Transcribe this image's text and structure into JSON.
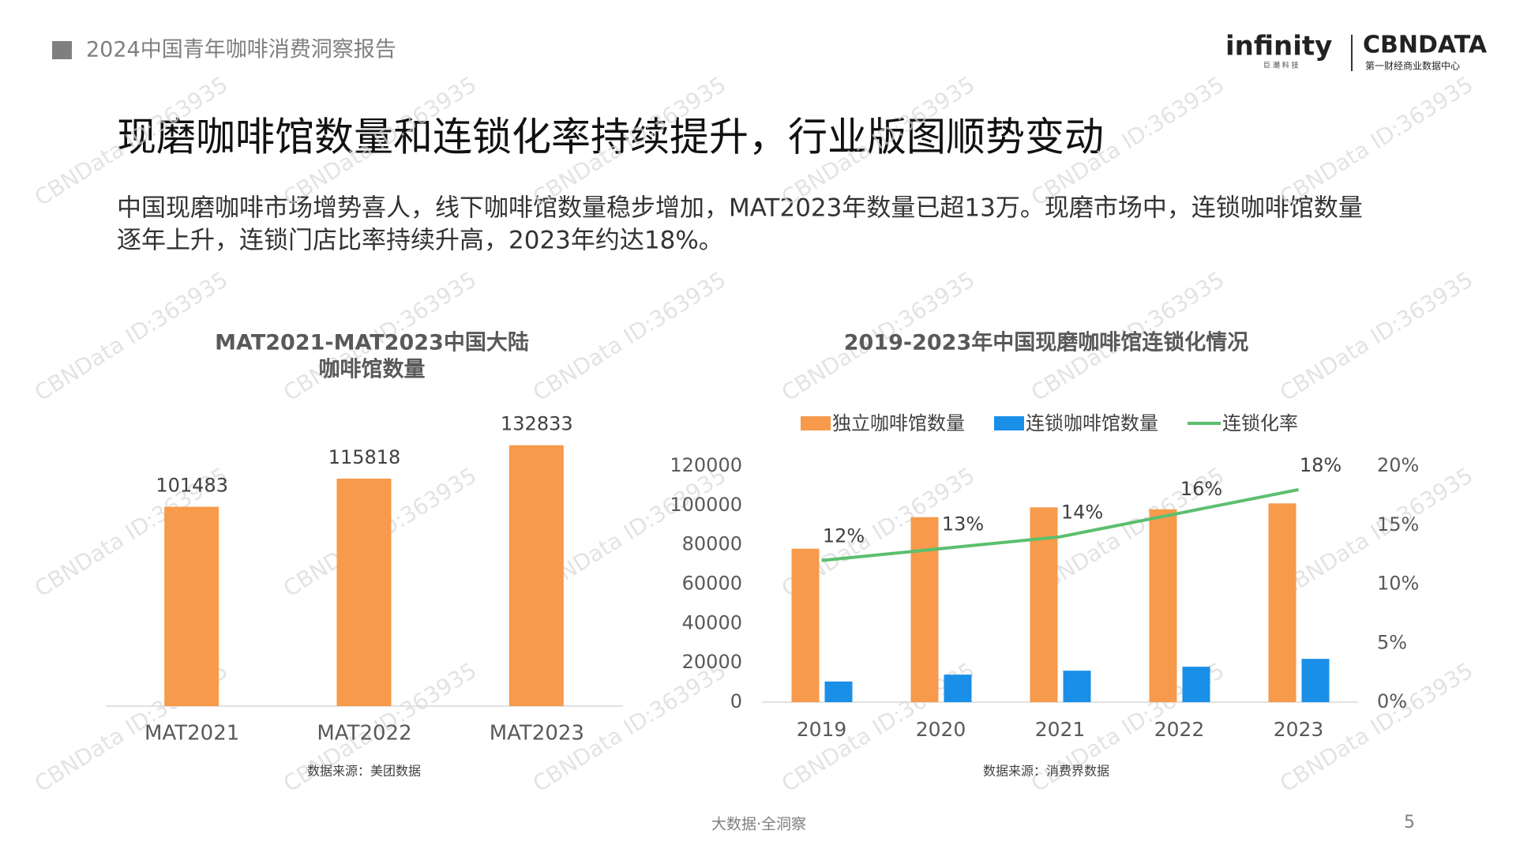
{
  "header": {
    "report_title": "2024中国青年咖啡消费洞察报告",
    "logo_left": "infinity",
    "logo_left_sub": "巨 潮 科 技",
    "logo_right": "CBNDATA",
    "logo_right_sub": "第一财经商业数据中心"
  },
  "title": "现磨咖啡馆数量和连锁化率持续提升，行业版图顺势变动",
  "description": [
    "中国现磨咖啡市场增势喜人，线下咖啡馆数量稳步增加，MAT2023年数量已超13万。现磨市场中，连锁咖啡馆数量",
    "逐年上升，连锁门店比率持续升高，2023年约达18%。"
  ],
  "watermark": "CBNData ID:363935",
  "footer": "大数据·全洞察",
  "page_number": "5",
  "chart_data": [
    {
      "type": "bar",
      "title": [
        "MAT2021-MAT2023中国大陆",
        "咖啡馆数量"
      ],
      "categories": [
        "MAT2021",
        "MAT2022",
        "MAT2023"
      ],
      "values": [
        101483,
        115818,
        132833
      ],
      "color": "#f79a4b",
      "ylim": [
        0,
        150000
      ],
      "source": "数据来源：美团数据"
    },
    {
      "type": "bar",
      "title": "2019-2023年中国现磨咖啡馆连锁化情况",
      "categories": [
        "2019",
        "2020",
        "2021",
        "2022",
        "2023"
      ],
      "series": [
        {
          "name": "独立咖啡馆数量",
          "color": "#f79a4b",
          "values": [
            78000,
            94000,
            99000,
            98000,
            101000
          ]
        },
        {
          "name": "连锁咖啡馆数量",
          "color": "#1a8fe8",
          "values": [
            10500,
            14000,
            16000,
            18000,
            22000
          ]
        },
        {
          "name": "连锁化率",
          "color": "#5cbf6e",
          "type": "line",
          "axis": "y2",
          "values": [
            12,
            13,
            14,
            16,
            18
          ],
          "value_labels": [
            "12%",
            "13%",
            "14%",
            "16%",
            "18%"
          ]
        }
      ],
      "ylim": [
        0,
        120000
      ],
      "yticks": [
        0,
        20000,
        40000,
        60000,
        80000,
        100000,
        120000
      ],
      "y2lim": [
        0,
        20
      ],
      "y2ticks": [
        {
          "value": 0,
          "label": "0%"
        },
        {
          "value": 5,
          "label": "5%"
        },
        {
          "value": 10,
          "label": "10%"
        },
        {
          "value": 15,
          "label": "15%"
        },
        {
          "value": 20,
          "label": "20%"
        }
      ],
      "legend": "top",
      "source": "数据来源：消费界数据"
    }
  ]
}
